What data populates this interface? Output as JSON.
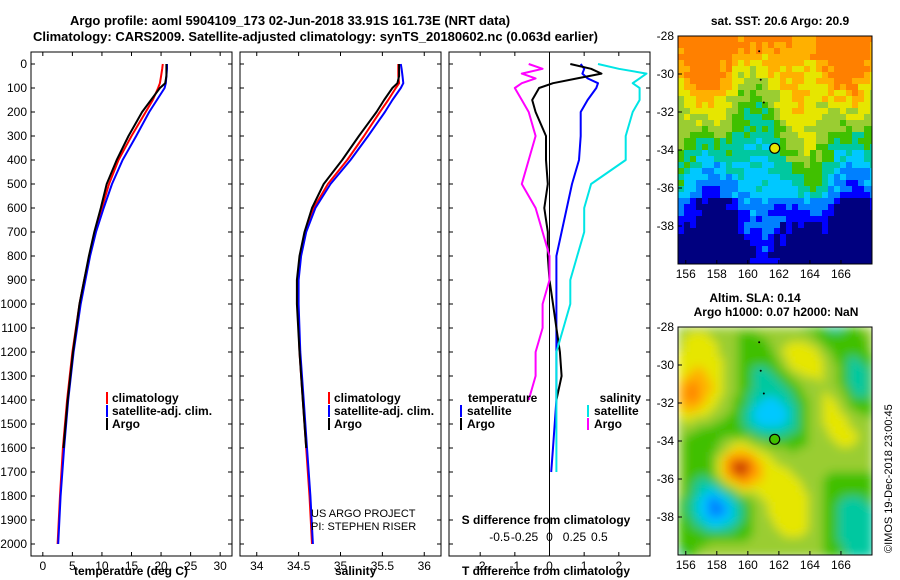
{
  "title": {
    "line1": "Argo profile: aoml 5904109_173 02-Jun-2018 33.91S 161.73E (NRT data)",
    "line2": "Climatology: CARS2009. Satellite-adjusted climatology: synTS_20180602.nc (0.063d earlier)"
  },
  "colors": {
    "climatology": "#ff0000",
    "satellite": "#0000ff",
    "argo": "#000000",
    "sat_salinity": "#00e5e5",
    "clim_salinity": "#ff00ff"
  },
  "depth_axis": {
    "min": 0,
    "max": 2050,
    "ticks": [
      "0",
      "100",
      "200",
      "300",
      "400",
      "500",
      "600",
      "700",
      "800",
      "900",
      "1000",
      "1100",
      "1200",
      "1300",
      "1400",
      "1500",
      "1600",
      "1700",
      "1800",
      "1900",
      "2000"
    ]
  },
  "credits": {
    "line1": "US ARGO PROJECT",
    "line2": "PI: STEPHEN RISER"
  },
  "watermark": "©IMOS 19-Dec-2018 23:00:45",
  "chart_data": [
    {
      "type": "line",
      "title": "",
      "xlabel": "temperature (deg C)",
      "ylabel": "depth",
      "xlim": [
        -2,
        32
      ],
      "ylim": [
        2050,
        -50
      ],
      "xticks": [
        "0",
        "5",
        "10",
        "15",
        "20",
        "25",
        "30"
      ],
      "legend": [
        "climatology",
        "satellite-adj. clim.",
        "Argo"
      ],
      "depth": [
        0,
        20,
        50,
        80,
        100,
        150,
        200,
        300,
        400,
        500,
        600,
        700,
        800,
        900,
        1000,
        1200,
        1400,
        1600,
        1800,
        2000
      ],
      "series": [
        {
          "name": "climatology",
          "color": "#ff0000",
          "values": [
            20.3,
            20.2,
            20.0,
            19.8,
            19.5,
            18.6,
            17.4,
            15.0,
            12.8,
            11.2,
            10.0,
            8.8,
            7.9,
            7.0,
            6.2,
            5.0,
            4.1,
            3.4,
            2.9,
            2.5
          ]
        },
        {
          "name": "satellite-adj. clim.",
          "color": "#0000ff",
          "values": [
            21.0,
            21.0,
            20.9,
            20.8,
            20.6,
            19.3,
            18.0,
            15.8,
            13.5,
            11.7,
            10.3,
            9.0,
            8.0,
            7.2,
            6.4,
            5.2,
            4.3,
            3.6,
            3.0,
            2.6
          ]
        },
        {
          "name": "Argo",
          "color": "#000000",
          "values": [
            20.9,
            20.9,
            20.9,
            20.7,
            19.8,
            18.3,
            16.8,
            14.5,
            12.5,
            10.8,
            9.8,
            8.7,
            7.8,
            7.0,
            6.2,
            5.1,
            4.2,
            3.5,
            null,
            null
          ]
        }
      ]
    },
    {
      "type": "line",
      "title": "",
      "xlabel": "salinity",
      "ylabel": "depth",
      "xlim": [
        33.8,
        36.2
      ],
      "ylim": [
        2050,
        -50
      ],
      "xticks": [
        "34",
        "34.5",
        "35",
        "35.5",
        "36"
      ],
      "legend": [
        "climatology",
        "satellite-adj. clim.",
        "Argo"
      ],
      "depth": [
        0,
        20,
        50,
        80,
        100,
        150,
        200,
        300,
        400,
        500,
        600,
        700,
        800,
        900,
        1000,
        1200,
        1400,
        1600,
        1800,
        2000
      ],
      "series": [
        {
          "name": "climatology",
          "color": "#ff0000",
          "values": [
            35.69,
            35.69,
            35.69,
            35.7,
            35.66,
            35.57,
            35.47,
            35.28,
            35.08,
            34.85,
            34.68,
            34.58,
            34.52,
            34.49,
            34.49,
            34.51,
            34.55,
            34.59,
            34.63,
            34.66
          ]
        },
        {
          "name": "satellite-adj. clim.",
          "color": "#0000ff",
          "values": [
            35.72,
            35.73,
            35.74,
            35.75,
            35.72,
            35.62,
            35.53,
            35.33,
            35.12,
            34.88,
            34.7,
            34.59,
            34.53,
            34.5,
            34.5,
            34.52,
            34.56,
            34.6,
            34.64,
            34.67
          ]
        },
        {
          "name": "Argo",
          "color": "#000000",
          "values": [
            35.7,
            35.7,
            35.7,
            35.68,
            35.62,
            35.52,
            35.43,
            35.22,
            35.02,
            34.8,
            34.66,
            34.57,
            34.51,
            34.48,
            34.48,
            34.51,
            34.55,
            34.59,
            null,
            null
          ]
        }
      ]
    },
    {
      "type": "line",
      "title": "",
      "xlabel": "T difference from climatology",
      "x2label": "S difference from climatology",
      "ylabel": "depth",
      "xlim": [
        -2.9,
        2.9
      ],
      "ylim": [
        2050,
        -50
      ],
      "xticks": [
        "-2",
        "-1",
        "0",
        "1",
        "2"
      ],
      "x2ticks": [
        "-0.5",
        "-0.25",
        "0",
        "0.25",
        "0.5"
      ],
      "legend_left_title": "temperature",
      "legend_right_title": "salinity",
      "legend": [
        "satellite",
        "Argo",
        "satellite",
        "Argo"
      ],
      "depth": [
        0,
        20,
        40,
        60,
        80,
        100,
        150,
        200,
        300,
        400,
        500,
        600,
        700,
        800,
        900,
        1000,
        1100,
        1200,
        1300,
        1400,
        1500,
        1600,
        1700
      ],
      "series": [
        {
          "name": "temperature satellite",
          "color": "#0000ff",
          "values": [
            0.9,
            1.0,
            0.95,
            1.1,
            1.4,
            1.35,
            1.1,
            0.9,
            0.9,
            0.85,
            0.65,
            0.5,
            0.35,
            0.2,
            0.2,
            0.2,
            0.2,
            0.2,
            0.2,
            0.2,
            0.15,
            0.1,
            0.05
          ]
        },
        {
          "name": "temperature Argo",
          "color": "#000000",
          "values": [
            0.6,
            1.2,
            1.5,
            0.8,
            0.1,
            -0.3,
            -0.5,
            -0.4,
            -0.1,
            -0.1,
            -0.05,
            -0.15,
            -0.05,
            -0.05,
            0.0,
            0.1,
            0.2,
            0.3,
            0.35,
            0.2,
            null,
            null,
            null
          ]
        },
        {
          "name": "salinity satellite",
          "color": "#00e5e5",
          "values": [
            0.35,
            0.5,
            0.7,
            0.65,
            0.6,
            0.65,
            0.65,
            0.6,
            0.55,
            0.55,
            0.3,
            0.25,
            0.25,
            0.2,
            0.15,
            0.15,
            0.1,
            0.05,
            0.05,
            0.05,
            0.05,
            0.05,
            0.05
          ]
        },
        {
          "name": "salinity Argo",
          "color": "#ff00ff",
          "values": [
            -0.15,
            -0.05,
            -0.2,
            -0.1,
            -0.2,
            -0.25,
            -0.2,
            -0.15,
            -0.1,
            -0.15,
            -0.2,
            -0.1,
            -0.05,
            0.0,
            0.0,
            -0.05,
            -0.05,
            -0.1,
            -0.1,
            -0.15,
            null,
            null,
            null
          ]
        }
      ]
    },
    {
      "type": "heatmap",
      "title": "sat. SST: 20.6 Argo: 20.9",
      "xticks": [
        "156",
        "158",
        "160",
        "162",
        "164",
        "166"
      ],
      "yticks": [
        "-28",
        "-30",
        "-32",
        "-34",
        "-36",
        "-38"
      ],
      "xlim": [
        155.5,
        168
      ],
      "ylim": [
        -40,
        -28
      ],
      "marker": {
        "lon": 161.73,
        "lat": -33.91
      },
      "colormap": [
        "#00007f",
        "#0000ff",
        "#0080ff",
        "#00c8ff",
        "#00c8a0",
        "#40c000",
        "#9acd32",
        "#e6e600",
        "#ffb000",
        "#ff8000"
      ]
    },
    {
      "type": "heatmap",
      "title": "Altim. SLA: 0.14",
      "subtitle": "Argo h1000: 0.07 h2000: NaN",
      "xticks": [
        "156",
        "158",
        "160",
        "162",
        "164",
        "166"
      ],
      "yticks": [
        "-28",
        "-30",
        "-32",
        "-34",
        "-36",
        "-38"
      ],
      "xlim": [
        155.5,
        168
      ],
      "ylim": [
        -40,
        -28
      ],
      "marker": {
        "lon": 161.73,
        "lat": -33.91
      },
      "colormap": [
        "#00007f",
        "#0000ff",
        "#0080ff",
        "#00c8ff",
        "#00c8a0",
        "#40c000",
        "#9acd32",
        "#e6e600",
        "#ffb000",
        "#ff8000",
        "#c03000",
        "#800000"
      ]
    }
  ]
}
